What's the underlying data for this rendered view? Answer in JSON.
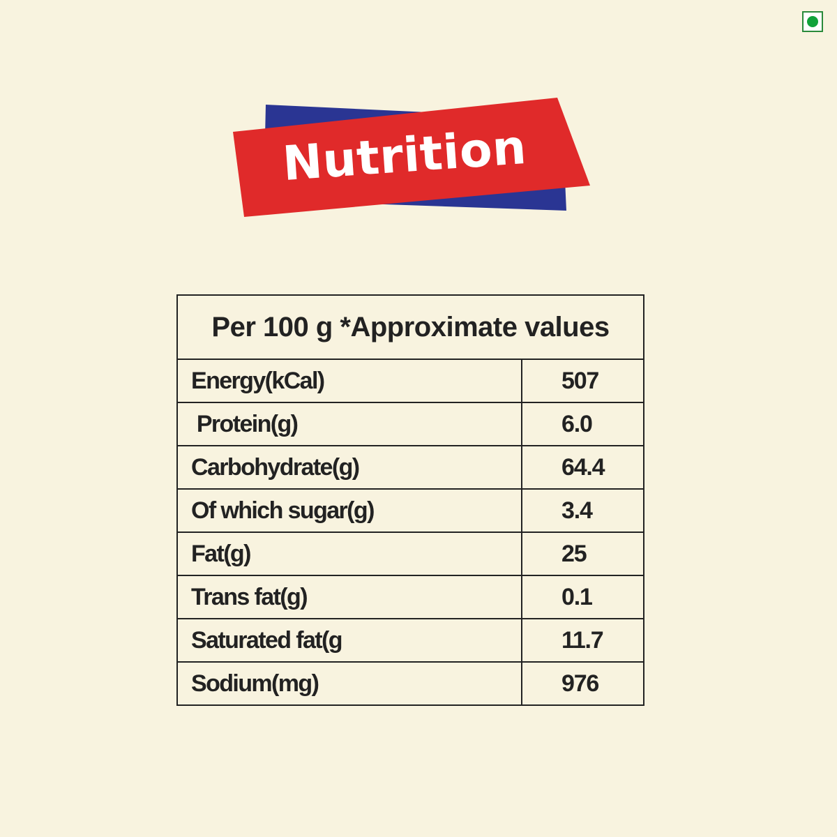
{
  "banner": {
    "title": "Nutrition",
    "colors": {
      "red": "#e02a2a",
      "blue": "#2a3593",
      "text": "#ffffff"
    }
  },
  "veg_mark": {
    "icon": "veg-symbol-icon",
    "color": "#11a23a"
  },
  "table": {
    "header": "Per 100 g *Approximate values",
    "rows": [
      {
        "name": "Energy(kCal)",
        "value": "507"
      },
      {
        "name": " Protein(g)",
        "value": "6.0"
      },
      {
        "name": "Carbohydrate(g)",
        "value": "64.4"
      },
      {
        "name": "Of which sugar(g)",
        "value": "3.4"
      },
      {
        "name": "Fat(g)",
        "value": "25"
      },
      {
        "name": "Trans fat(g)",
        "value": "0.1"
      },
      {
        "name": "Saturated fat(g",
        "value": "11.7"
      },
      {
        "name": "Sodium(mg)",
        "value": "976"
      }
    ]
  }
}
